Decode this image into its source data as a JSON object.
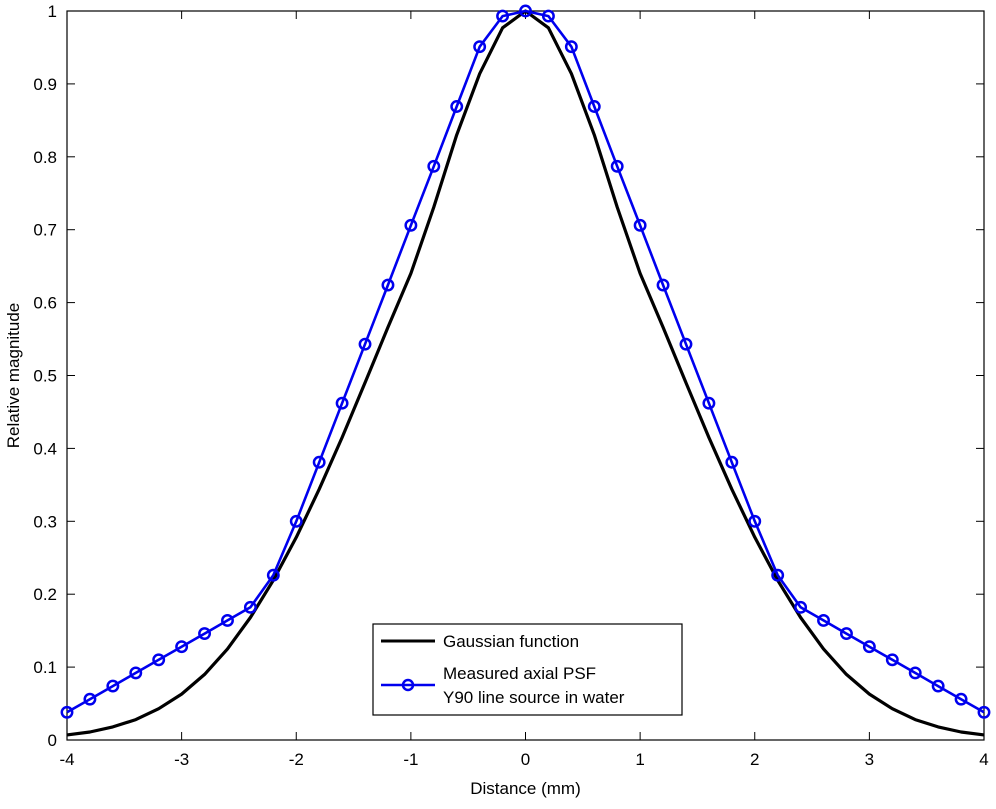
{
  "chart_data": {
    "type": "line",
    "title": "",
    "xlabel": "Distance (mm)",
    "ylabel": "Relative magnitude",
    "xlim": [
      -4,
      4
    ],
    "ylim": [
      0,
      1
    ],
    "xticks": [
      -4,
      -3,
      -2,
      -1,
      0,
      1,
      2,
      3,
      4
    ],
    "yticks": [
      0,
      0.1,
      0.2,
      0.3,
      0.4,
      0.5,
      0.6,
      0.7,
      0.8,
      0.9,
      1
    ],
    "xtick_labels": [
      "-4",
      "-3",
      "-2",
      "-1",
      "0",
      "1",
      "2",
      "3",
      "4"
    ],
    "ytick_labels": [
      "0",
      "0.1",
      "0.2",
      "0.3",
      "0.4",
      "0.5",
      "0.6",
      "0.7",
      "0.8",
      "0.9",
      "1"
    ],
    "grid": false,
    "legend_position": "bottom-center",
    "series": [
      {
        "name": "Gaussian function",
        "color": "#000000",
        "marker": "none",
        "x": [
          -4.0,
          -3.8,
          -3.6,
          -3.4,
          -3.2,
          -3.0,
          -2.8,
          -2.6,
          -2.4,
          -2.2,
          -2.0,
          -1.8,
          -1.6,
          -1.4,
          -1.2,
          -1.0,
          -0.8,
          -0.6,
          -0.4,
          -0.2,
          0.0,
          0.2,
          0.4,
          0.6,
          0.8,
          1.0,
          1.2,
          1.4,
          1.6,
          1.8,
          2.0,
          2.2,
          2.4,
          2.6,
          2.8,
          3.0,
          3.2,
          3.4,
          3.6,
          3.8,
          4.0
        ],
        "y": [
          0.007,
          0.011,
          0.018,
          0.028,
          0.043,
          0.063,
          0.09,
          0.125,
          0.168,
          0.219,
          0.278,
          0.344,
          0.415,
          0.49,
          0.566,
          0.64,
          0.731,
          0.83,
          0.914,
          0.977,
          1.0,
          0.977,
          0.914,
          0.83,
          0.731,
          0.64,
          0.566,
          0.49,
          0.415,
          0.344,
          0.278,
          0.219,
          0.168,
          0.125,
          0.09,
          0.063,
          0.043,
          0.028,
          0.018,
          0.011,
          0.007
        ]
      },
      {
        "name": "Measured axial PSF",
        "name_line2": "Y90 line source in water",
        "color": "#0000ee",
        "marker": "circle",
        "x": [
          -4.0,
          -3.8,
          -3.6,
          -3.4,
          -3.2,
          -3.0,
          -2.8,
          -2.6,
          -2.4,
          -2.2,
          -2.0,
          -1.8,
          -1.6,
          -1.4,
          -1.2,
          -1.0,
          -0.8,
          -0.6,
          -0.4,
          -0.2,
          0.0,
          0.2,
          0.4,
          0.6,
          0.8,
          1.0,
          1.2,
          1.4,
          1.6,
          1.8,
          2.0,
          2.2,
          2.4,
          2.6,
          2.8,
          3.0,
          3.2,
          3.4,
          3.6,
          3.8,
          4.0
        ],
        "y": [
          0.038,
          0.056,
          0.074,
          0.092,
          0.11,
          0.128,
          0.146,
          0.164,
          0.182,
          0.226,
          0.3,
          0.381,
          0.462,
          0.543,
          0.624,
          0.706,
          0.787,
          0.869,
          0.951,
          0.993,
          1.0,
          0.993,
          0.951,
          0.869,
          0.787,
          0.706,
          0.624,
          0.543,
          0.462,
          0.381,
          0.3,
          0.226,
          0.182,
          0.164,
          0.146,
          0.128,
          0.11,
          0.092,
          0.074,
          0.056,
          0.038
        ]
      }
    ]
  }
}
